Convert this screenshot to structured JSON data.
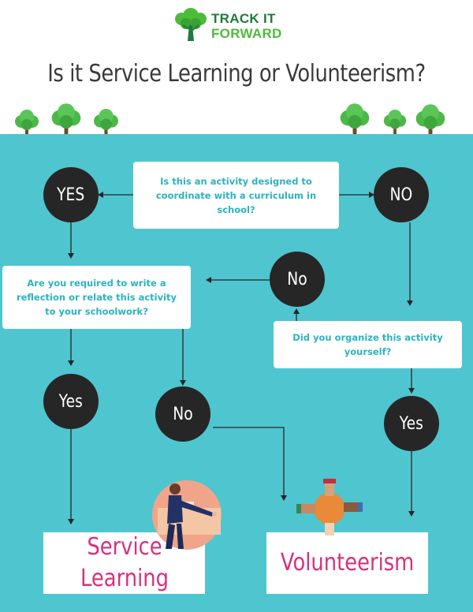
{
  "logo": {
    "line1": "TRACK IT",
    "line2": "FORWARD",
    "icon": "tree-logo-icon"
  },
  "title": "Is it Service Learning or Volunteerism?",
  "questions": {
    "q1": "Is this an activity designed to coordinate with a curriculum in school?",
    "q2": "Are you required to write a reflection or relate this activity to your schoolwork?",
    "q3": "Did you organize this activity yourself?"
  },
  "answers": {
    "yes_top": "YES",
    "no_top": "NO",
    "no_mid": "No",
    "yes_left": "Yes",
    "no_left": "No",
    "yes_right": "Yes"
  },
  "outcomes": {
    "service_learning": "Service Learning",
    "volunteerism": "Volunteerism"
  },
  "colors": {
    "teal": "#4fc5cf",
    "dark": "#262626",
    "question_text": "#2bb3c0",
    "outcome_text": "#d6317e",
    "tree_green": "#4cb848"
  },
  "illustrations": [
    "presenter-illustration",
    "hands-together-illustration"
  ]
}
